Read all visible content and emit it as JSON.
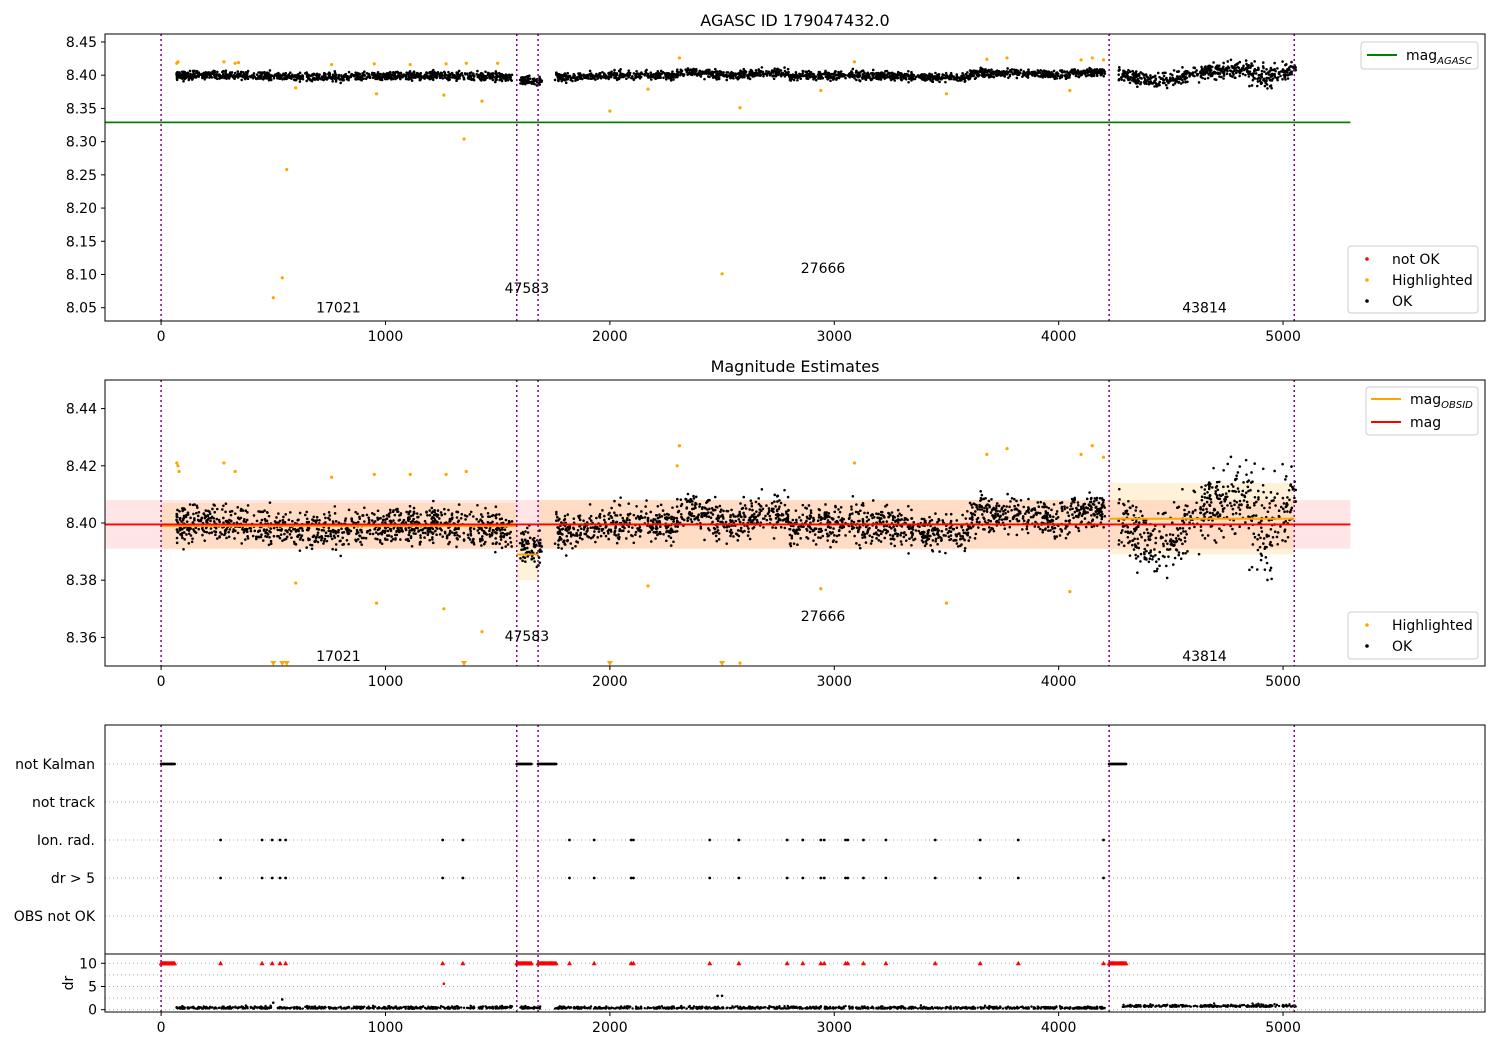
{
  "chart_data": [
    {
      "id": "agasc",
      "type": "scatter",
      "title": "AGASC ID 179047432.0",
      "xlim": [
        -250,
        5900
      ],
      "ylim": [
        8.03,
        8.462
      ],
      "xticks": [
        0,
        1000,
        2000,
        3000,
        4000,
        5000
      ],
      "yticks": [
        8.05,
        8.1,
        8.15,
        8.2,
        8.25,
        8.3,
        8.35,
        8.4,
        8.45
      ],
      "ytick_labels": [
        "8.05",
        "8.10",
        "8.15",
        "8.20",
        "8.25",
        "8.30",
        "8.35",
        "8.40",
        "8.45"
      ],
      "obs_boundaries": [
        0,
        1585,
        1680,
        4225,
        5050
      ],
      "obs_labels": [
        {
          "text": "17021",
          "x": 790,
          "y": 8.05
        },
        {
          "text": "47583",
          "x": 1630,
          "y": 8.08
        },
        {
          "text": "27666",
          "x": 2950,
          "y": 8.11
        },
        {
          "text": "43814",
          "x": 4650,
          "y": 8.05
        }
      ],
      "mag_agasc": 8.329,
      "mag_agasc_x": [
        -250,
        5300
      ],
      "legend_top": [
        {
          "label": "mag",
          "sub": "AGASC",
          "color": "#008000"
        }
      ],
      "legend_bottom": [
        {
          "label": "not OK",
          "color": "#ff0000"
        },
        {
          "label": "Highlighted",
          "color": "#ffa500"
        },
        {
          "label": "OK",
          "color": "#000000"
        }
      ],
      "highlighted_points": [
        [
          70,
          8.418
        ],
        [
          75,
          8.42
        ],
        [
          280,
          8.42
        ],
        [
          330,
          8.418
        ],
        [
          345,
          8.419
        ],
        [
          500,
          8.065
        ],
        [
          540,
          8.095
        ],
        [
          560,
          8.258
        ],
        [
          600,
          8.381
        ],
        [
          760,
          8.416
        ],
        [
          950,
          8.417
        ],
        [
          960,
          8.372
        ],
        [
          1110,
          8.416
        ],
        [
          1260,
          8.37
        ],
        [
          1270,
          8.417
        ],
        [
          1350,
          8.304
        ],
        [
          1360,
          8.418
        ],
        [
          1430,
          8.361
        ],
        [
          1500,
          8.418
        ],
        [
          2000,
          8.346
        ],
        [
          2170,
          8.379
        ],
        [
          2310,
          8.426
        ],
        [
          2500,
          8.101
        ],
        [
          2580,
          8.351
        ],
        [
          2940,
          8.377
        ],
        [
          3090,
          8.42
        ],
        [
          3500,
          8.372
        ],
        [
          3680,
          8.424
        ],
        [
          3770,
          8.426
        ],
        [
          4050,
          8.377
        ],
        [
          4100,
          8.423
        ],
        [
          4150,
          8.426
        ],
        [
          4200,
          8.423
        ]
      ]
    },
    {
      "id": "estimates",
      "type": "scatter",
      "title": "Magnitude Estimates",
      "xlim": [
        -250,
        5900
      ],
      "ylim": [
        8.35,
        8.45
      ],
      "xticks": [
        0,
        1000,
        2000,
        3000,
        4000,
        5000
      ],
      "yticks": [
        8.36,
        8.38,
        8.4,
        8.42,
        8.44
      ],
      "ytick_labels": [
        "8.36",
        "8.38",
        "8.40",
        "8.42",
        "8.44"
      ],
      "obs_boundaries": [
        0,
        1585,
        1680,
        4225,
        5050
      ],
      "obs_labels": [
        {
          "text": "17021",
          "x": 790,
          "y": 8.3535
        },
        {
          "text": "47583",
          "x": 1630,
          "y": 8.3605
        },
        {
          "text": "27666",
          "x": 2950,
          "y": 8.3675
        },
        {
          "text": "43814",
          "x": 4650,
          "y": 8.3535
        }
      ],
      "mag": 8.3995,
      "mag_band": [
        8.391,
        8.408
      ],
      "mag_x": [
        -250,
        5300
      ],
      "mag_obsid": [
        {
          "x0": 0,
          "x1": 1585,
          "y": 8.399,
          "lo": 8.391,
          "hi": 8.407
        },
        {
          "x0": 1585,
          "x1": 1680,
          "y": 8.389,
          "lo": 8.38,
          "hi": 8.398
        },
        {
          "x0": 1680,
          "x1": 4225,
          "y": 8.3995,
          "lo": 8.391,
          "hi": 8.408
        },
        {
          "x0": 4225,
          "x1": 5050,
          "y": 8.4015,
          "lo": 8.389,
          "hi": 8.414
        }
      ],
      "legend_top": [
        {
          "label": "mag",
          "sub": "OBSID",
          "color": "#ffa500"
        },
        {
          "label": "mag",
          "sub": "",
          "color": "#ff0000"
        }
      ],
      "legend_bottom": [
        {
          "label": "Highlighted",
          "color": "#ffa500"
        },
        {
          "label": "OK",
          "color": "#000000"
        }
      ],
      "highlighted_points": [
        [
          70,
          8.421
        ],
        [
          75,
          8.42
        ],
        [
          80,
          8.418
        ],
        [
          280,
          8.421
        ],
        [
          330,
          8.418
        ],
        [
          600,
          8.379
        ],
        [
          760,
          8.416
        ],
        [
          950,
          8.417
        ],
        [
          960,
          8.372
        ],
        [
          1110,
          8.417
        ],
        [
          1260,
          8.37
        ],
        [
          1270,
          8.417
        ],
        [
          1360,
          8.418
        ],
        [
          1430,
          8.362
        ],
        [
          2170,
          8.378
        ],
        [
          2300,
          8.42
        ],
        [
          2310,
          8.427
        ],
        [
          2580,
          8.351
        ],
        [
          2940,
          8.377
        ],
        [
          3090,
          8.421
        ],
        [
          3500,
          8.372
        ],
        [
          3680,
          8.424
        ],
        [
          3770,
          8.426
        ],
        [
          4050,
          8.376
        ],
        [
          4100,
          8.424
        ],
        [
          4150,
          8.427
        ],
        [
          4200,
          8.423
        ]
      ],
      "offscale_points": [
        500,
        540,
        560,
        1350,
        2000,
        2500
      ]
    },
    {
      "id": "flags",
      "type": "scatter",
      "title": "",
      "xlim": [
        -250,
        5900
      ],
      "xticks": [
        0,
        1000,
        2000,
        3000,
        4000,
        5000
      ],
      "rows": [
        "not Kalman",
        "not track",
        "Ion. rad.",
        "dr > 5",
        "OBS not OK"
      ],
      "dr_label": "dr",
      "dr_ylim": [
        -0.5,
        12
      ],
      "dr_yticks": [
        0,
        5,
        10
      ],
      "obs_boundaries": [
        0,
        1585,
        1680,
        4225,
        5050
      ],
      "not_kalman_ranges": [
        [
          0,
          60
        ],
        [
          1585,
          1650
        ],
        [
          1680,
          1760
        ],
        [
          4225,
          4300
        ]
      ],
      "ion_rad_x": [
        265,
        450,
        495,
        530,
        555,
        1255,
        1345,
        1820,
        1930,
        2095,
        2105,
        2445,
        2575,
        2790,
        2860,
        2940,
        2955,
        3050,
        3060,
        3130,
        3230,
        3450,
        3650,
        3820,
        4200
      ],
      "dr5_x": [
        265,
        450,
        495,
        530,
        555,
        1255,
        1345,
        1820,
        1930,
        2095,
        2105,
        2445,
        2575,
        2790,
        2860,
        2940,
        2955,
        3050,
        3060,
        3130,
        3230,
        3450,
        3650,
        3820,
        4200
      ],
      "dr_outliers": [
        [
          500,
          1.5
        ],
        [
          540,
          2.2
        ],
        [
          1260,
          5.6
        ],
        [
          2480,
          3.0
        ],
        [
          2500,
          3.0
        ]
      ]
    }
  ]
}
